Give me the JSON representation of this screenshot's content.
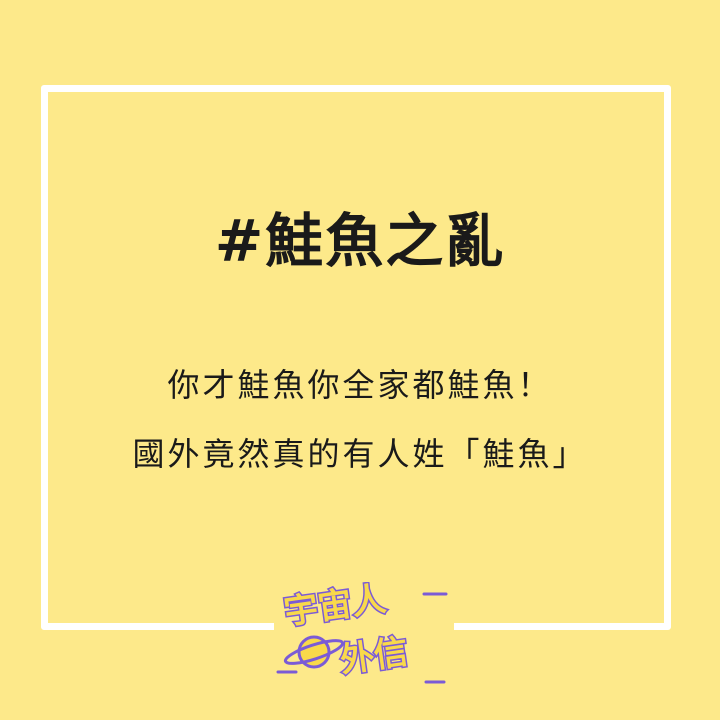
{
  "post": {
    "title": "#鮭魚之亂",
    "line1": "你才鮭魚你全家都鮭魚！",
    "line2": "國外竟然真的有人姓「鮭魚」"
  },
  "logo": {
    "line1": "宇宙人",
    "line2": "外信",
    "icon": "planet-icon"
  },
  "colors": {
    "background": "#fde98a",
    "frame": "#ffffff",
    "text": "#1a1a1a",
    "logo_fill": "#f9d94a",
    "logo_outline": "#7b5bd6"
  }
}
